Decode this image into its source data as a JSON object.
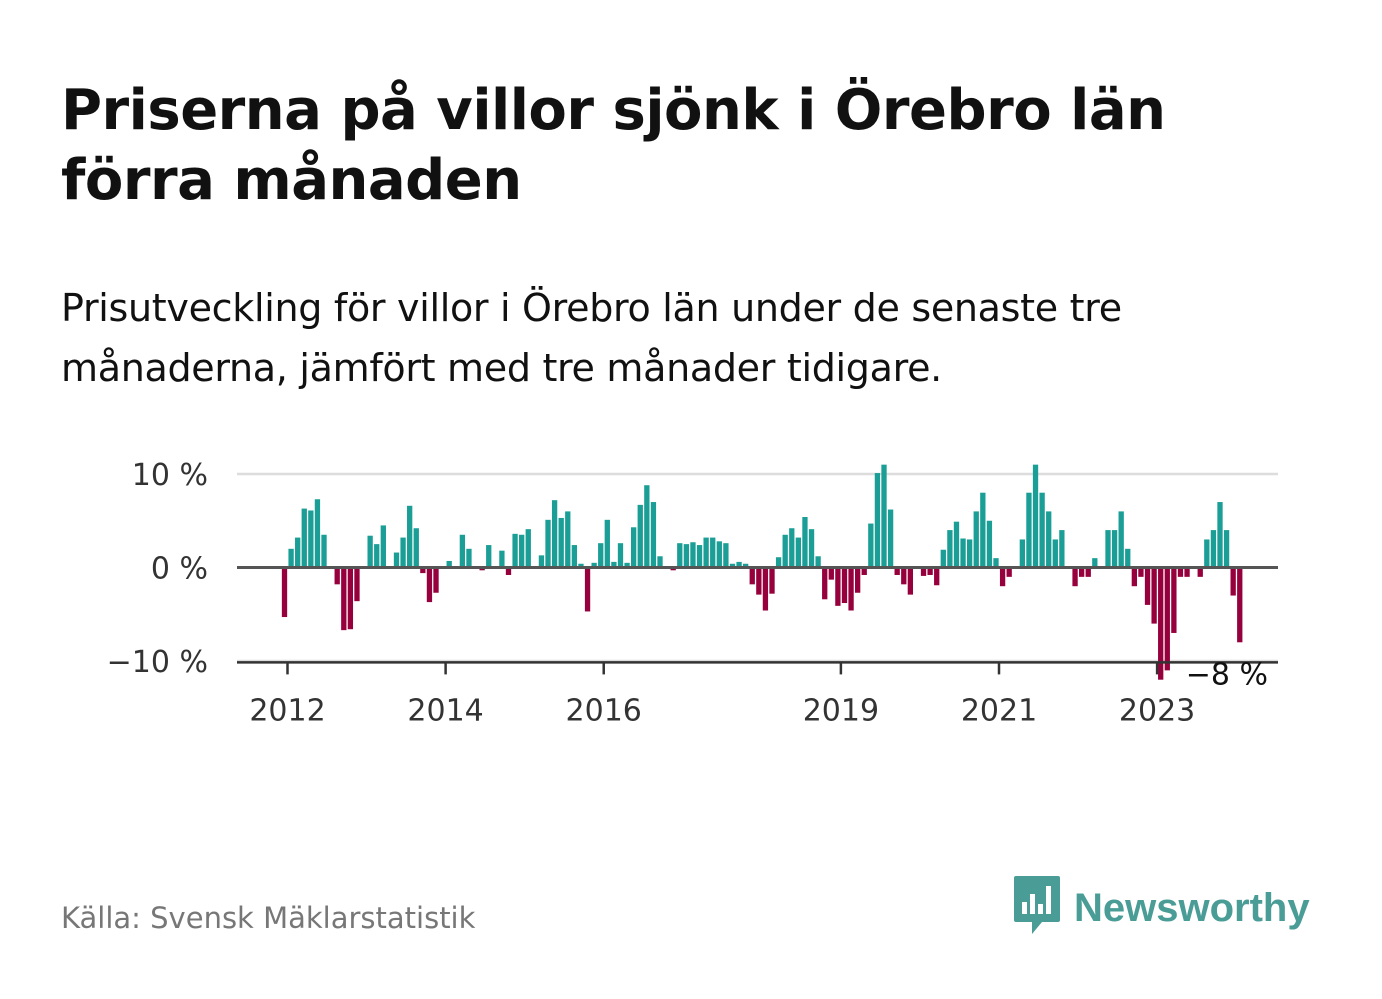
{
  "title": "Priserna på villor sjönk i Örebro län förra månaden",
  "subtitle": "Prisutveckling för villor i Örebro län under de senaste tre månaderna, jämfört med tre månader tidigare.",
  "source": "Källa: Svensk Mäklarstatistik",
  "brand": {
    "name": "Newsworthy",
    "icon": "newsworthy-logo-icon"
  },
  "colors": {
    "positive": "#1a9e96",
    "negative": "#96003c",
    "grid": "#dddddd",
    "zero_line": "#555555"
  },
  "chart_data": {
    "type": "bar",
    "title": "",
    "xlabel": "",
    "ylabel": "",
    "ylim": [
      -14,
      10
    ],
    "y_ticks": [
      {
        "value": 10,
        "label": "10 %"
      },
      {
        "value": 0,
        "label": "0 %"
      },
      {
        "value": -10,
        "label": "−10 %"
      }
    ],
    "x_ticks": [
      {
        "value": "2012-01",
        "label": "2012"
      },
      {
        "value": "2014-01",
        "label": "2014"
      },
      {
        "value": "2016-01",
        "label": "2016"
      },
      {
        "value": "2019-01",
        "label": "2019"
      },
      {
        "value": "2021-01",
        "label": "2021"
      },
      {
        "value": "2023-01",
        "label": "2023"
      }
    ],
    "grid": true,
    "end_label": "−8 %",
    "series": [
      {
        "start": "2012-01",
        "values": [
          -5.3,
          2,
          3.2,
          6.3,
          6.1,
          7.3,
          3.5,
          0,
          -1.8,
          -6.7,
          -6.6,
          -3.6,
          0,
          3.4,
          2.5,
          4.5,
          0,
          1.6,
          3.2,
          6.6,
          4.2,
          -0.6,
          -3.7,
          -2.7,
          0,
          0.7,
          0,
          3.5,
          2,
          0,
          -0.3,
          2.4,
          0,
          1.8,
          -0.8,
          3.6,
          3.5,
          4.1,
          0,
          1.3,
          5.1,
          7.2,
          5.3,
          6,
          2.4,
          0.4,
          -4.7,
          0.5,
          2.6,
          5.1,
          0.6,
          2.6,
          0.5,
          4.3,
          6.7,
          8.8,
          7,
          1.2,
          0,
          -0.3,
          2.6,
          2.5,
          2.7,
          2.4,
          3.2,
          3.2,
          2.8,
          2.6,
          0.4,
          0.6,
          0.4,
          -1.8,
          -2.9,
          -4.6,
          -2.8,
          1.1,
          3.5,
          4.2,
          3.2,
          5.4,
          4.1,
          1.2,
          -3.4,
          -1.3,
          -4.1,
          -3.8,
          -4.6,
          -2.7,
          -0.8,
          4.7,
          10.1,
          11,
          6.2,
          -0.8,
          -1.8,
          -2.9,
          0,
          -0.9,
          -0.8,
          -1.9,
          1.9,
          4,
          4.9,
          3.1,
          3,
          6,
          8,
          5,
          1,
          -2,
          -1,
          0,
          3,
          8,
          11,
          8,
          6,
          3,
          4,
          0,
          -2,
          -1,
          -1,
          1,
          0,
          4,
          4,
          6,
          2,
          -2,
          -1,
          -4,
          -6,
          -12,
          -11,
          -7,
          -1,
          -1,
          0,
          -1,
          3,
          4,
          7,
          4,
          -3,
          -8
        ]
      }
    ]
  }
}
